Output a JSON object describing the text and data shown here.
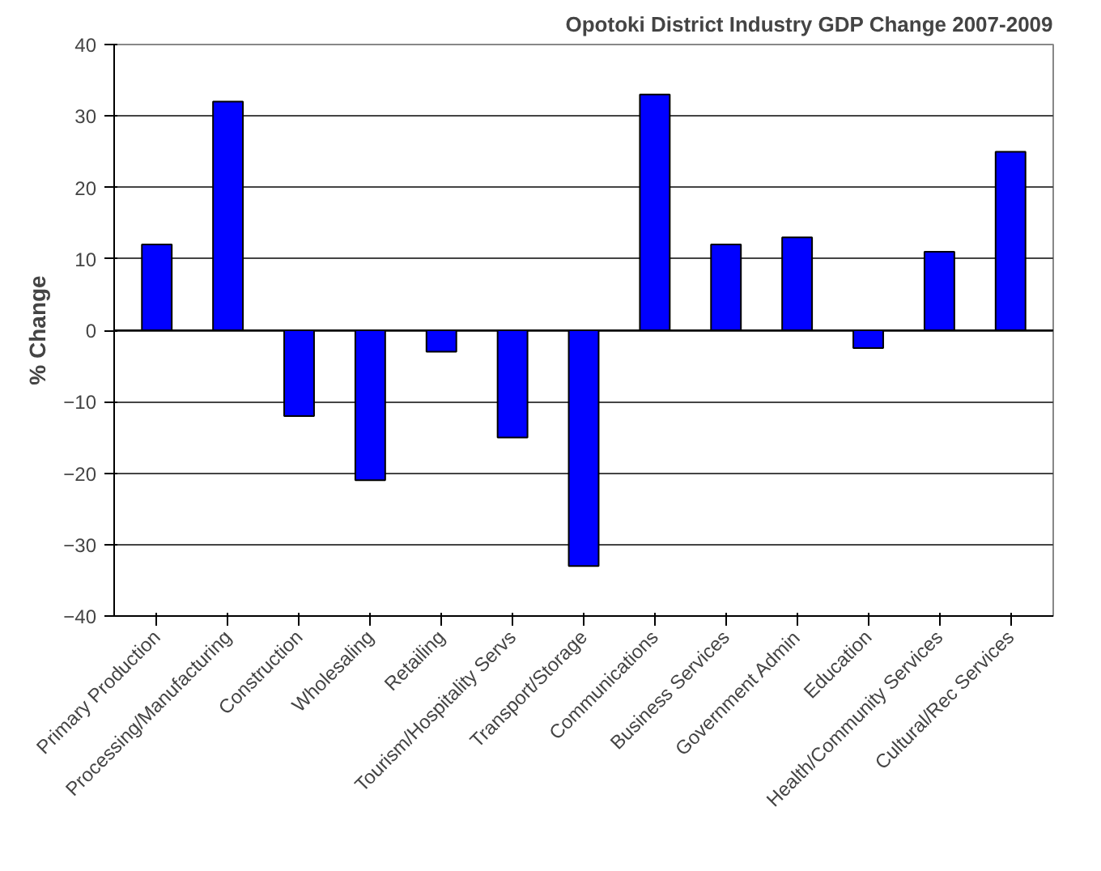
{
  "chart_data": {
    "type": "bar",
    "title": "Opotoki District Industry GDP Change 2007-2009",
    "ylabel": "% Change",
    "categories": [
      "Primary Production",
      "Processing/Manufacturing",
      "Construction",
      "Wholesaling",
      "Retailing",
      "Tourism/Hospitality Servs",
      "Transport/Storage",
      "Communications",
      "Business Services",
      "Government Admin",
      "Education",
      "Health/Community Services",
      "Cultural/Rec Services"
    ],
    "values": [
      12,
      32,
      -12,
      -21,
      -3,
      -15,
      -33,
      33,
      12,
      13,
      -2.5,
      11,
      25
    ],
    "color": "#0000ff",
    "ylim": [
      -40,
      40
    ],
    "yticks": [
      -40,
      -30,
      -20,
      -10,
      0,
      10,
      20,
      30,
      40
    ],
    "grid": "y"
  }
}
